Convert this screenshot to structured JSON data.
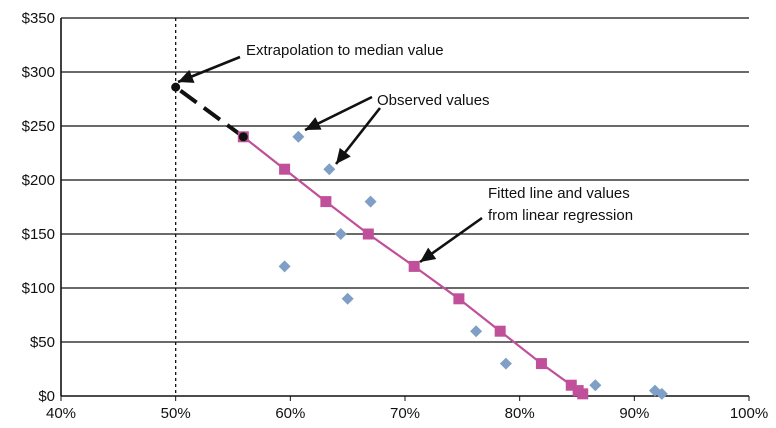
{
  "chart_data": {
    "type": "scatter",
    "title": "",
    "xlabel": "",
    "ylabel": "",
    "xlim": [
      40,
      100
    ],
    "ylim": [
      0,
      350
    ],
    "x_ticks": [
      "40%",
      "50%",
      "60%",
      "70%",
      "80%",
      "90%",
      "100%"
    ],
    "y_ticks": [
      "$0",
      "$50",
      "$100",
      "$150",
      "$200",
      "$250",
      "$300",
      "$350"
    ],
    "grid": "horizontal",
    "colors": {
      "observed": "#7f9fc6",
      "fitted": "#c0509a",
      "extrapolation": "#111111",
      "grid": "#111111"
    },
    "series": [
      {
        "name": "Observed values",
        "marker": "diamond",
        "points": [
          [
            60.7,
            240
          ],
          [
            63.4,
            210
          ],
          [
            67.0,
            180
          ],
          [
            64.4,
            150
          ],
          [
            59.5,
            120
          ],
          [
            65.0,
            90
          ],
          [
            76.2,
            60
          ],
          [
            78.8,
            30
          ],
          [
            86.6,
            10
          ],
          [
            91.8,
            5
          ],
          [
            92.4,
            2
          ]
        ]
      },
      {
        "name": "Fitted line and values from linear regression",
        "marker": "square",
        "points": [
          [
            55.9,
            240
          ],
          [
            59.5,
            210
          ],
          [
            63.1,
            180
          ],
          [
            66.8,
            150
          ],
          [
            70.8,
            120
          ],
          [
            74.7,
            90
          ],
          [
            78.3,
            60
          ],
          [
            81.9,
            30
          ],
          [
            84.5,
            10
          ],
          [
            85.1,
            5
          ],
          [
            85.5,
            2
          ]
        ]
      }
    ],
    "extrapolation": {
      "from": [
        55.9,
        240
      ],
      "to": [
        50,
        286
      ],
      "median_x": 50
    },
    "annotations": [
      {
        "text": "Extrapolation to median value"
      },
      {
        "text": "Observed values"
      },
      {
        "lines": [
          "Fitted line and values",
          "from linear regression"
        ]
      }
    ]
  }
}
